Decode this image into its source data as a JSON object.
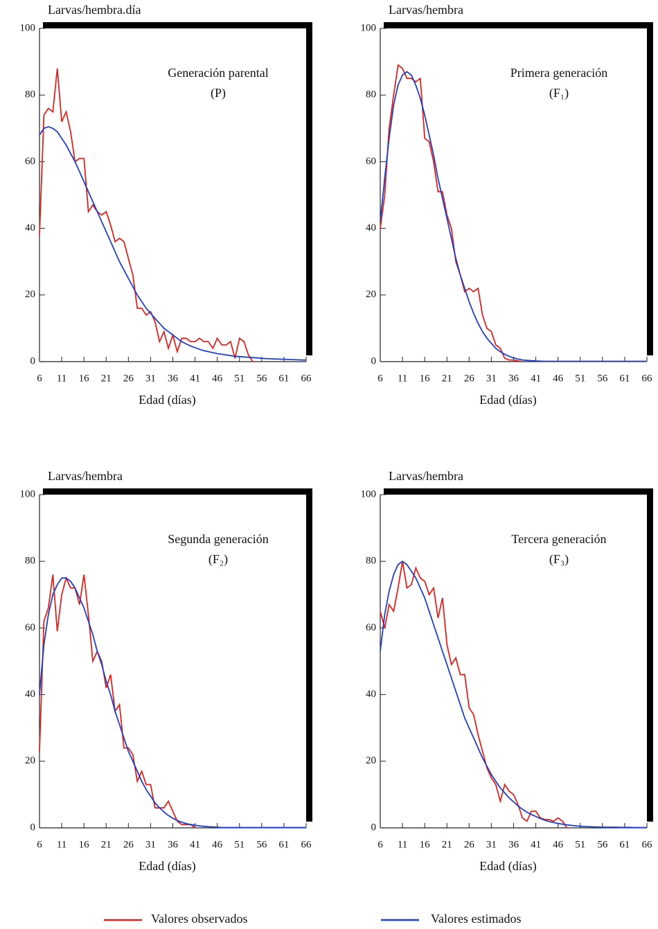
{
  "chart_data": [
    {
      "type": "line",
      "title": "Generación parental",
      "subtitle": "(P)",
      "ylabel": "Larvas/hembra.día",
      "xlabel": "Edad (días)",
      "x": [
        6,
        7,
        8,
        9,
        10,
        11,
        12,
        13,
        14,
        15,
        16,
        17,
        18,
        19,
        20,
        21,
        22,
        23,
        24,
        25,
        26,
        27,
        28,
        29,
        30,
        31,
        32,
        33,
        34,
        35,
        36,
        37,
        38,
        39,
        40,
        41,
        42,
        43,
        44,
        45,
        46,
        47,
        48,
        49,
        50,
        51,
        52,
        53,
        54,
        55,
        56,
        57,
        58,
        59,
        60,
        61,
        62,
        63,
        64,
        65,
        66
      ],
      "xlim": [
        6,
        66
      ],
      "xticks": [
        6,
        11,
        16,
        21,
        26,
        31,
        36,
        41,
        46,
        51,
        56,
        61,
        66
      ],
      "ylim": [
        0,
        100
      ],
      "yticks": [
        0,
        20,
        40,
        60,
        80,
        100
      ],
      "series": [
        {
          "values": [
            38,
            74,
            76,
            75,
            88,
            72,
            75,
            69,
            60,
            61,
            61,
            45,
            47,
            45,
            44,
            45,
            41,
            36,
            37,
            36,
            31,
            26,
            16,
            16,
            14,
            15,
            12,
            6,
            9,
            4,
            8,
            3,
            7,
            7,
            6,
            6,
            7,
            6,
            6,
            4,
            7,
            5,
            5,
            6,
            1,
            7,
            6,
            2,
            0,
            null,
            null,
            null,
            null,
            null,
            null,
            null,
            null,
            null,
            null,
            null,
            null
          ]
        },
        {
          "values": [
            68,
            70,
            70.5,
            70,
            69,
            67,
            65,
            62.5,
            60,
            57,
            54,
            51,
            48,
            45,
            42,
            39,
            36,
            33,
            30,
            27.5,
            25,
            22.5,
            20,
            18,
            16,
            14.5,
            13,
            11.5,
            10,
            9,
            8,
            7,
            6,
            5.3,
            4.7,
            4.2,
            3.7,
            3.3,
            3,
            2.7,
            2.4,
            2.2,
            2,
            1.8,
            1.6,
            1.5,
            1.4,
            1.3,
            1.2,
            1.1,
            1,
            0.9,
            0.85,
            0.8,
            0.75,
            0.7,
            0.65,
            0.6,
            0.55,
            0.5,
            0.5
          ]
        }
      ]
    },
    {
      "type": "line",
      "title": "Primera generación",
      "subtitle": "(F₁)",
      "ylabel": "Larvas/hembra",
      "xlabel": "Edad (días)",
      "x": [
        6,
        7,
        8,
        9,
        10,
        11,
        12,
        13,
        14,
        15,
        16,
        17,
        18,
        19,
        20,
        21,
        22,
        23,
        24,
        25,
        26,
        27,
        28,
        29,
        30,
        31,
        32,
        33,
        34,
        35,
        36,
        37,
        38,
        39,
        40,
        41,
        42,
        43,
        44,
        45,
        46,
        47,
        48,
        49,
        50,
        51,
        52,
        53,
        54,
        55,
        56,
        57,
        58,
        59,
        60,
        61,
        62,
        63,
        64,
        65,
        66
      ],
      "xlim": [
        6,
        66
      ],
      "xticks": [
        6,
        11,
        16,
        21,
        26,
        31,
        36,
        41,
        46,
        51,
        56,
        61,
        66
      ],
      "ylim": [
        0,
        100
      ],
      "yticks": [
        0,
        20,
        40,
        60,
        80,
        100
      ],
      "series": [
        {
          "values": [
            40,
            50,
            70,
            80,
            89,
            88,
            85,
            85,
            84,
            85,
            67,
            66,
            60,
            51,
            51,
            44,
            40,
            30,
            26,
            21,
            22,
            21,
            22,
            14,
            10,
            9,
            5,
            4,
            1,
            0.5,
            0.5,
            0.2,
            0,
            null,
            null,
            null,
            null,
            null,
            null,
            null,
            null,
            null,
            null,
            null,
            null,
            null,
            null,
            null,
            null,
            null,
            null,
            null,
            null,
            null,
            null,
            null,
            null,
            null,
            null,
            null,
            null
          ]
        },
        {
          "values": [
            42,
            55,
            67,
            77,
            83,
            86,
            87,
            86,
            83,
            79,
            74,
            68,
            62,
            55,
            49,
            43,
            37,
            31,
            26,
            22,
            18,
            14.5,
            11.5,
            9,
            7,
            5.5,
            4,
            3,
            2.2,
            1.6,
            1.1,
            0.8,
            0.5,
            0.4,
            0.3,
            0.2,
            0.15,
            0.1,
            0.1,
            0.1,
            0.1,
            0.1,
            0.1,
            0.1,
            0.1,
            0.1,
            0.1,
            0.1,
            0.1,
            0.1,
            0.1,
            0.1,
            0.1,
            0.1,
            0.1,
            0.1,
            0.1,
            0.1,
            0.1,
            0.1,
            0.1
          ]
        }
      ]
    },
    {
      "type": "line",
      "title": "Segunda generación",
      "subtitle": "(F₂)",
      "ylabel": "Larvas/hembra",
      "xlabel": "Edad (días)",
      "x": [
        6,
        7,
        8,
        9,
        10,
        11,
        12,
        13,
        14,
        15,
        16,
        17,
        18,
        19,
        20,
        21,
        22,
        23,
        24,
        25,
        26,
        27,
        28,
        29,
        30,
        31,
        32,
        33,
        34,
        35,
        36,
        37,
        38,
        39,
        40,
        41,
        42,
        43,
        44,
        45,
        46,
        47,
        48,
        49,
        50,
        51,
        52,
        53,
        54,
        55,
        56,
        57,
        58,
        59,
        60,
        61,
        62,
        63,
        64,
        65,
        66
      ],
      "xlim": [
        6,
        66
      ],
      "xticks": [
        6,
        11,
        16,
        21,
        26,
        31,
        36,
        41,
        46,
        51,
        56,
        61,
        66
      ],
      "ylim": [
        0,
        100
      ],
      "yticks": [
        0,
        20,
        40,
        60,
        80,
        100
      ],
      "series": [
        {
          "values": [
            23,
            62,
            66,
            76,
            59,
            70,
            75,
            72,
            72,
            67,
            76,
            64,
            50,
            53,
            50,
            42,
            46,
            35,
            37,
            24,
            24,
            22,
            14,
            17,
            13,
            13,
            6,
            6,
            6,
            8,
            5,
            2,
            1,
            1,
            1,
            0,
            null,
            null,
            null,
            null,
            null,
            null,
            null,
            null,
            null,
            null,
            null,
            null,
            null,
            null,
            null,
            null,
            null,
            null,
            null,
            null,
            null,
            null,
            null,
            null,
            null
          ]
        },
        {
          "values": [
            40,
            55,
            64,
            70,
            73,
            75,
            75,
            74,
            72,
            69,
            66,
            62,
            58,
            53,
            49,
            44,
            40,
            35,
            31,
            27,
            23,
            20,
            17,
            14,
            11.5,
            9.5,
            7.5,
            6,
            4.8,
            3.7,
            2.9,
            2.2,
            1.7,
            1.3,
            1,
            0.8,
            0.6,
            0.45,
            0.35,
            0.3,
            0.2,
            0.1,
            0.1,
            0.1,
            0.1,
            0.1,
            0.1,
            0.1,
            0.1,
            0.1,
            0.1,
            0.1,
            0.1,
            0.1,
            0.1,
            0.1,
            0.1,
            0.1,
            0.1,
            0.1,
            0.1
          ]
        }
      ]
    },
    {
      "type": "line",
      "title": "Tercera generación",
      "subtitle": "(F₃)",
      "ylabel": "Larvas/hembra",
      "xlabel": "Edad (días)",
      "x": [
        6,
        7,
        8,
        9,
        10,
        11,
        12,
        13,
        14,
        15,
        16,
        17,
        18,
        19,
        20,
        21,
        22,
        23,
        24,
        25,
        26,
        27,
        28,
        29,
        30,
        31,
        32,
        33,
        34,
        35,
        36,
        37,
        38,
        39,
        40,
        41,
        42,
        43,
        44,
        45,
        46,
        47,
        48,
        49,
        50,
        51,
        52,
        53,
        54,
        55,
        56,
        57,
        58,
        59,
        60,
        61,
        62,
        63,
        64,
        65,
        66
      ],
      "xlim": [
        6,
        66
      ],
      "xticks": [
        6,
        11,
        16,
        21,
        26,
        31,
        36,
        41,
        46,
        51,
        56,
        61,
        66
      ],
      "ylim": [
        0,
        100
      ],
      "yticks": [
        0,
        20,
        40,
        60,
        80,
        100
      ],
      "series": [
        {
          "values": [
            65,
            60,
            67,
            65,
            72,
            80,
            72,
            73,
            78,
            75,
            74,
            70,
            72,
            63,
            69,
            55,
            49,
            51,
            46,
            46,
            36,
            34,
            28,
            23,
            18,
            15,
            13,
            8,
            13,
            11,
            10,
            7,
            3,
            2,
            5,
            5,
            3,
            2.5,
            2.5,
            2,
            3,
            2,
            0,
            null,
            null,
            null,
            null,
            null,
            null,
            null,
            null,
            null,
            null,
            null,
            null,
            null,
            null,
            null,
            null,
            null,
            null
          ]
        },
        {
          "values": [
            53,
            64,
            71,
            76,
            79,
            80,
            79,
            77,
            75,
            72,
            69,
            65,
            61,
            57,
            53,
            49,
            45,
            41,
            37,
            33,
            30,
            27,
            24,
            21,
            18.5,
            16,
            14,
            12,
            10.5,
            9,
            7.8,
            6.6,
            5.6,
            4.7,
            4,
            3.4,
            2.8,
            2.3,
            1.9,
            1.6,
            1.3,
            1.1,
            0.9,
            0.75,
            0.6,
            0.5,
            0.4,
            0.35,
            0.3,
            0.25,
            0.2,
            0.2,
            0.2,
            0.2,
            0.15,
            0.15,
            0.15,
            0.1,
            0.1,
            0.1,
            0.1
          ]
        }
      ]
    }
  ],
  "legend": [
    {
      "name": "Valores observados",
      "color": "#e0231c"
    },
    {
      "name": "Valores estimados",
      "color": "#1f3fc4"
    }
  ]
}
